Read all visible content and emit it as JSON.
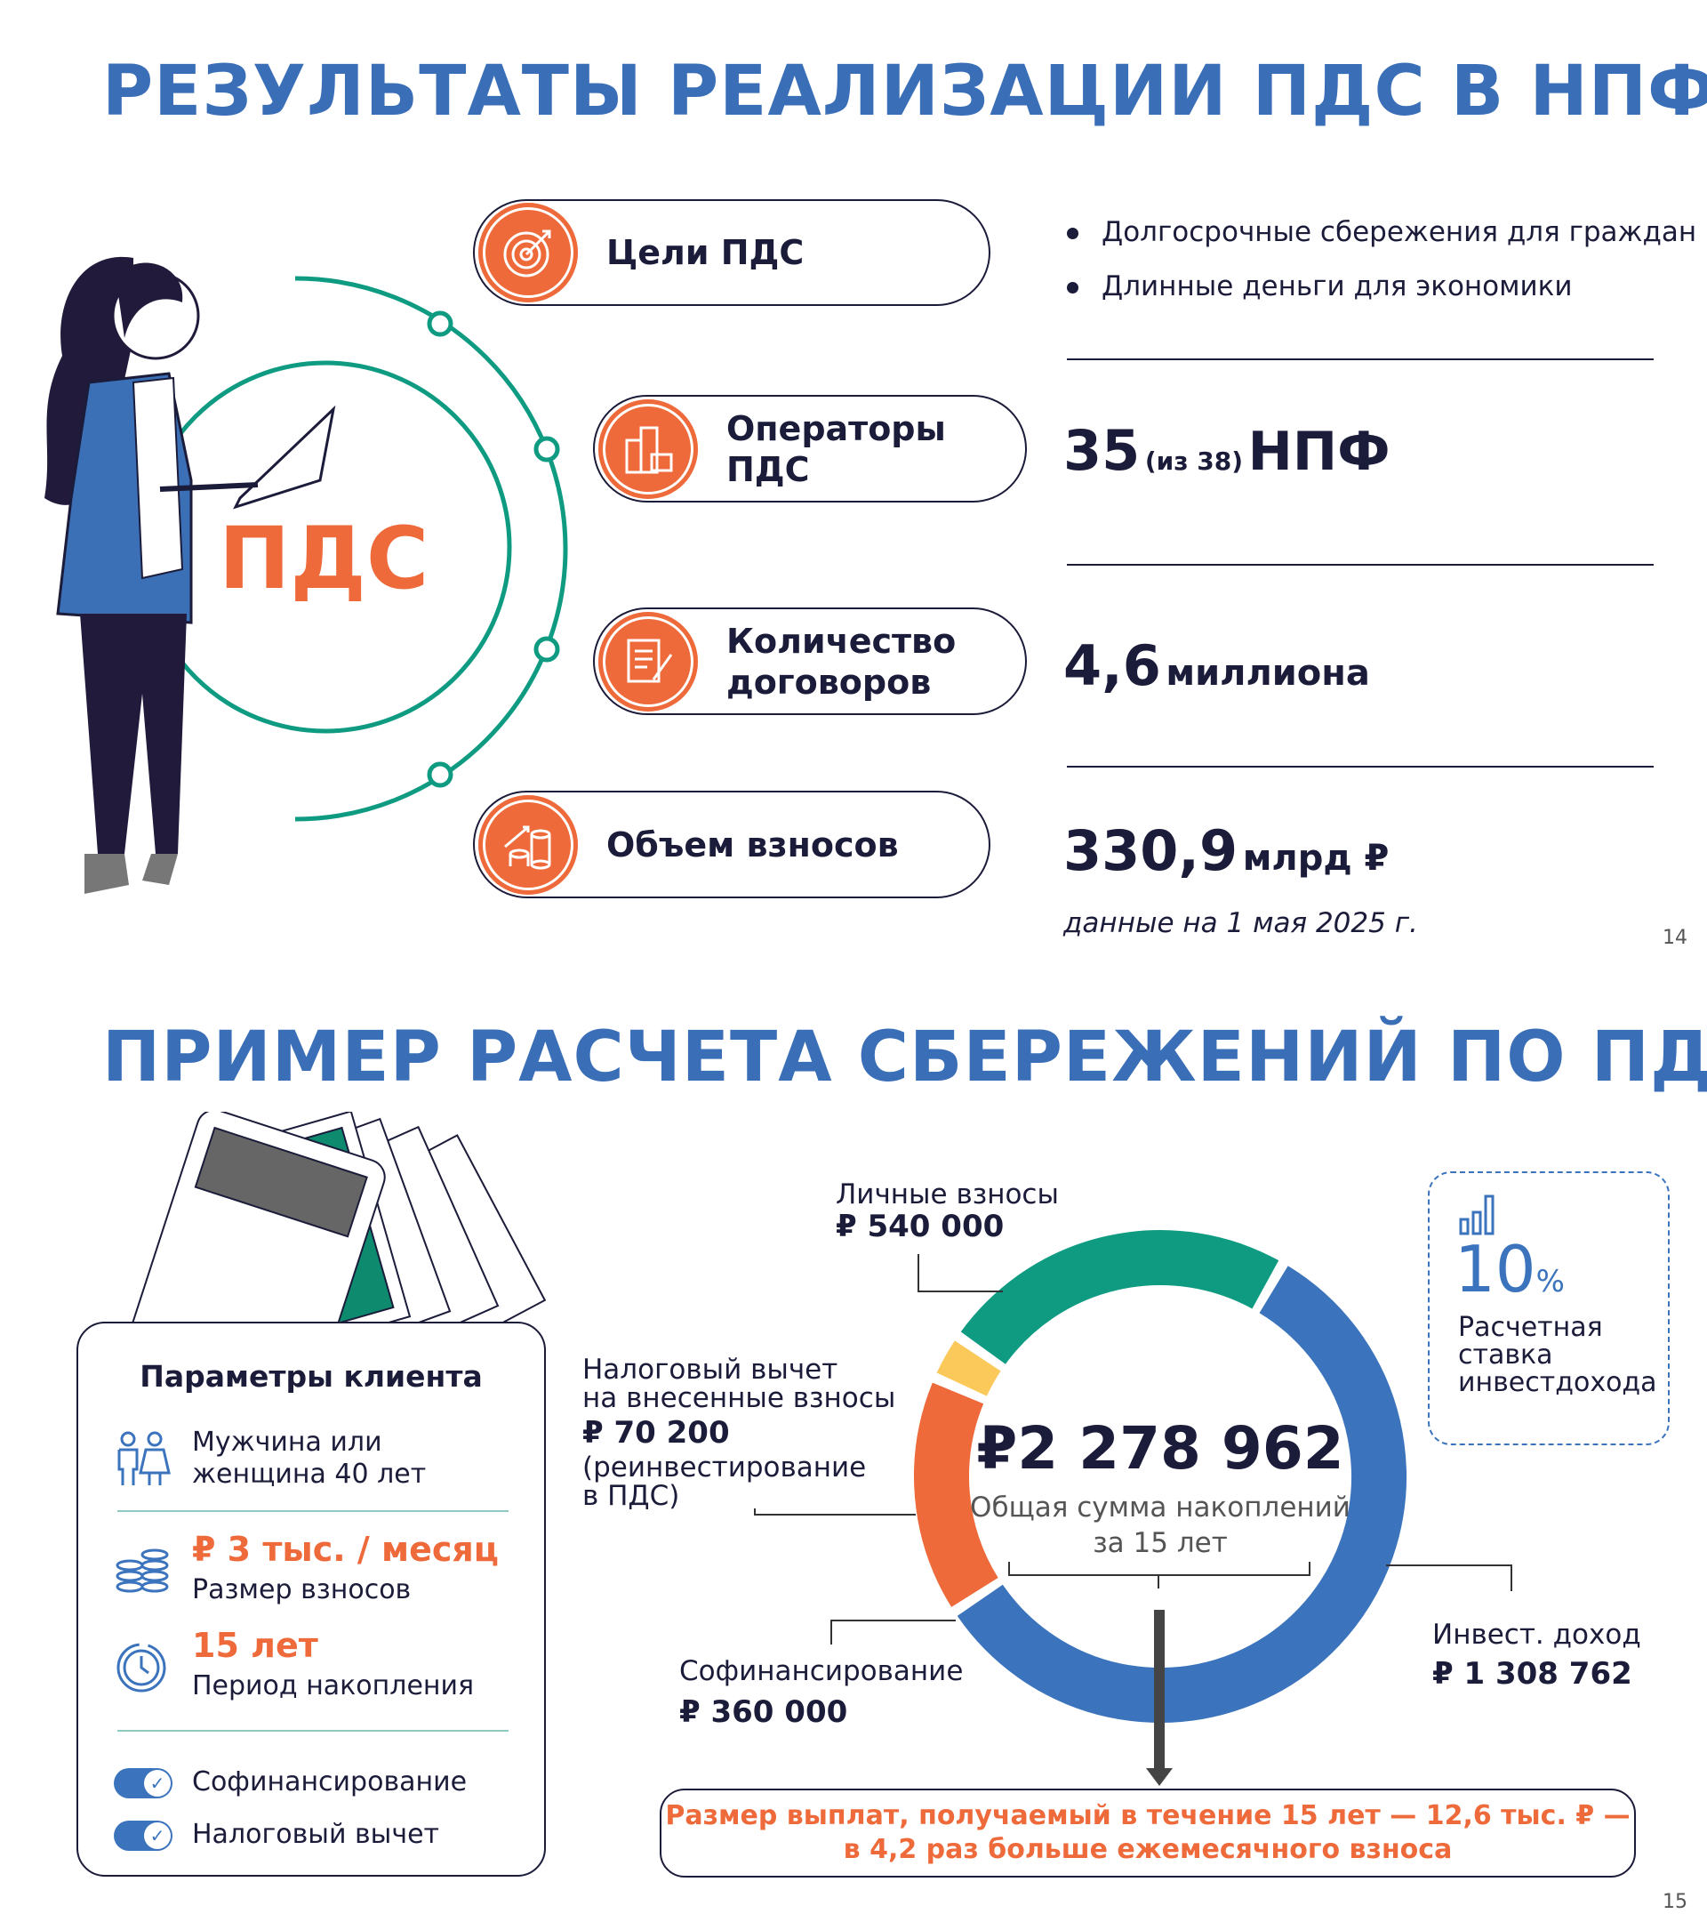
{
  "slide1": {
    "title": "РЕЗУЛЬТАТЫ РЕАЛИЗАЦИИ ПДС В НПФ",
    "center_label": "ПДС",
    "pills": [
      {
        "label": "Цели ПДС",
        "icon": "target-icon"
      },
      {
        "label": "Операторы\nПДС",
        "icon": "buildings-icon"
      },
      {
        "label": "Количество\nдоговоров",
        "icon": "contract-icon"
      },
      {
        "label": "Объем взносов",
        "icon": "coins-growth-icon"
      }
    ],
    "goals": [
      "Долгосрочные сбережения для граждан",
      "Длинные деньги для экономики"
    ],
    "operators": {
      "value": "35",
      "note": "(из 38)",
      "unit": "НПФ"
    },
    "contracts": {
      "value": "4,6",
      "unit": "миллиона"
    },
    "contributions": {
      "value": "330,9",
      "unit": "млрд ₽"
    },
    "date_note": "данные на 1 мая 2025 г.",
    "page": "14"
  },
  "slide2": {
    "title": "ПРИМЕР РАСЧЕТА СБЕРЕЖЕНИЙ ПО ПДС",
    "params": {
      "title": "Параметры клиента",
      "client": "Мужчина или\nженщина 40 лет",
      "contribution_value": "₽ 3 тыс. / месяц",
      "contribution_label": "Размер взносов",
      "period_value": "15 лет",
      "period_label": "Период накопления",
      "toggles": [
        {
          "label": "Софинансирование",
          "on": true
        },
        {
          "label": "Налоговый вычет",
          "on": true
        }
      ]
    },
    "rate": {
      "value": "10",
      "unit": "%",
      "label": "Расчетная\nставка\nинвестдохода"
    },
    "result": {
      "line1": "Размер выплат, получаемый в течение 15 лет — 12,6 тыс. ₽ —",
      "line2": "в 4,2 раз больше ежемесячного взноса"
    },
    "page": "15"
  },
  "chart_data": {
    "type": "pie",
    "donut": true,
    "total": {
      "value": "₽2 278 962",
      "label1": "Общая сумма накоплений",
      "label2": "за 15 лет"
    },
    "slices": [
      {
        "name": "Инвест. доход",
        "value": 1308762,
        "label": "₽ 1 308 762",
        "color": "#3b74bd"
      },
      {
        "name": "Софинансирование",
        "value": 360000,
        "label": "₽ 360 000",
        "color": "#ee6a3a"
      },
      {
        "name": "Налоговый вычет на внесенные взносы",
        "value": 70200,
        "label": "₽ 70 200",
        "color": "#fbc95a"
      },
      {
        "name": "Личные взносы",
        "value": 540000,
        "label": "₽ 540 000",
        "color": "#0e9b82"
      }
    ],
    "tax_label": {
      "line1": "Налоговый вычет",
      "line2": "на внесенные взносы",
      "note1": "(реинвестирование",
      "note2": "в ПДС)"
    }
  }
}
